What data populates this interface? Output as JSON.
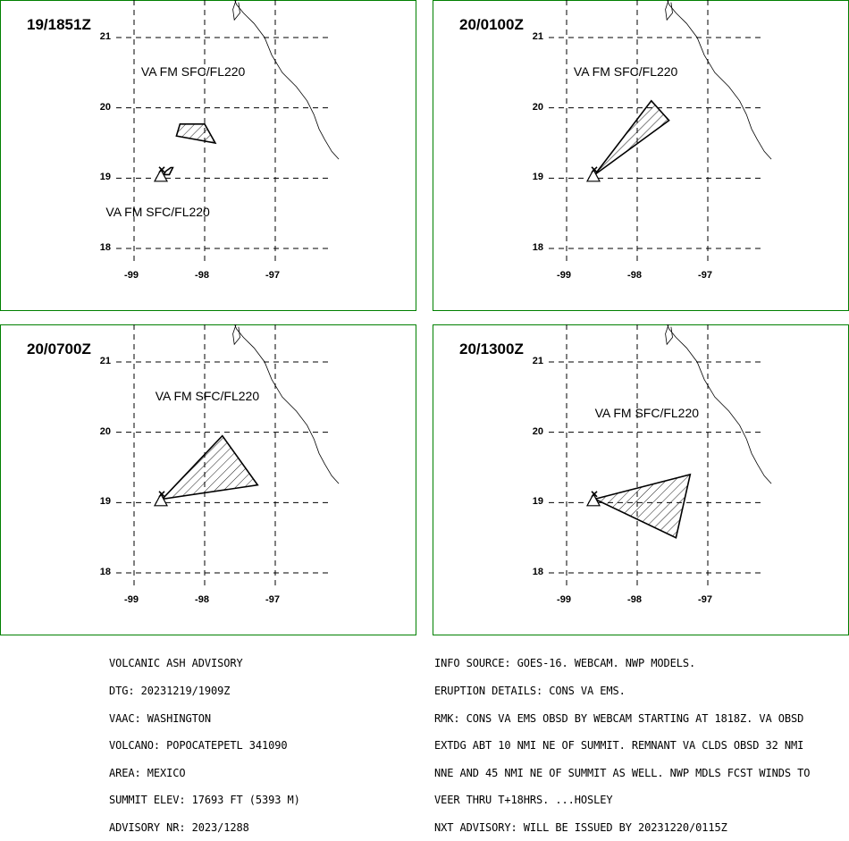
{
  "panels": [
    {
      "time": "19/1851Z",
      "labels": [
        {
          "text": "VA FM SFC/FL220",
          "lat": 20.52,
          "lon": -98.9
        },
        {
          "text": "VA FM SFC/FL220",
          "lat": 18.52,
          "lon": -99.4
        }
      ],
      "polygons": [
        [
          [
            -98.4,
            19.6
          ],
          [
            -98.35,
            19.77
          ],
          [
            -98.0,
            19.77
          ],
          [
            -97.85,
            19.5
          ]
        ],
        [
          [
            -98.58,
            19.05
          ],
          [
            -98.55,
            19.1
          ],
          [
            -98.48,
            19.15
          ],
          [
            -98.45,
            19.15
          ],
          [
            -98.5,
            19.05
          ]
        ]
      ]
    },
    {
      "time": "20/0100Z",
      "labels": [
        {
          "text": "VA FM SFC/FL220",
          "lat": 20.52,
          "lon": -98.9
        }
      ],
      "polygons": [
        [
          [
            -98.6,
            19.05
          ],
          [
            -97.8,
            20.1
          ],
          [
            -97.55,
            19.82
          ]
        ]
      ]
    },
    {
      "time": "20/0700Z",
      "labels": [
        {
          "text": "VA FM SFC/FL220",
          "lat": 20.52,
          "lon": -98.7
        }
      ],
      "polygons": [
        [
          [
            -98.6,
            19.05
          ],
          [
            -97.75,
            19.95
          ],
          [
            -97.25,
            19.25
          ]
        ]
      ]
    },
    {
      "time": "20/1300Z",
      "labels": [
        {
          "text": "VA FM SFC/FL220",
          "lat": 20.27,
          "lon": -98.6
        }
      ],
      "polygons": [
        [
          [
            -98.6,
            19.05
          ],
          [
            -97.25,
            19.4
          ],
          [
            -97.45,
            18.5
          ]
        ]
      ]
    }
  ],
  "map": {
    "lat_ticks": [
      "21",
      "20",
      "19",
      "18"
    ],
    "lon_ticks": [
      "-99",
      "-98",
      "-97"
    ],
    "lat_values": [
      21,
      20,
      19,
      18
    ],
    "lon_values": [
      -99,
      -98,
      -97
    ],
    "volcano": {
      "lat": 19.02,
      "lon": -98.62
    },
    "coastline": [
      [
        -97.6,
        21.6
      ],
      [
        -97.55,
        21.47
      ],
      [
        -97.45,
        21.35
      ],
      [
        -97.3,
        21.2
      ],
      [
        -97.15,
        21.0
      ],
      [
        -97.05,
        20.75
      ],
      [
        -96.9,
        20.5
      ],
      [
        -96.7,
        20.3
      ],
      [
        -96.55,
        20.1
      ],
      [
        -96.45,
        19.9
      ],
      [
        -96.38,
        19.7
      ],
      [
        -96.3,
        19.55
      ],
      [
        -96.2,
        19.38
      ],
      [
        -96.1,
        19.27
      ]
    ],
    "lagoon": [
      [
        -97.55,
        21.55
      ],
      [
        -97.6,
        21.4
      ],
      [
        -97.58,
        21.25
      ],
      [
        -97.5,
        21.35
      ],
      [
        -97.52,
        21.5
      ]
    ],
    "frame_color": "#008000"
  },
  "advisory_left": [
    "VOLCANIC ASH ADVISORY",
    "DTG: 20231219/1909Z",
    "VAAC: WASHINGTON",
    "VOLCANO: POPOCATEPETL 341090",
    "AREA: MEXICO",
    "SUMMIT ELEV: 17693 FT (5393 M)",
    "ADVISORY NR: 2023/1288"
  ],
  "advisory_right": [
    "INFO SOURCE: GOES-16. WEBCAM. NWP MODELS.",
    "ERUPTION DETAILS: CONS VA EMS.",
    "RMK: CONS VA EMS OBSD BY WEBCAM STARTING AT 1818Z. VA OBSD",
    "EXTDG ABT 10 NMI NE OF SUMMIT. REMNANT VA CLDS OBSD 32 NMI",
    "NNE AND 45 NMI NE OF SUMMIT AS WELL. NWP MDLS FCST WINDS TO",
    "VEER THRU T+18HRS. ...HOSLEY",
    "NXT ADVISORY: WILL BE ISSUED BY 20231220/0115Z"
  ]
}
